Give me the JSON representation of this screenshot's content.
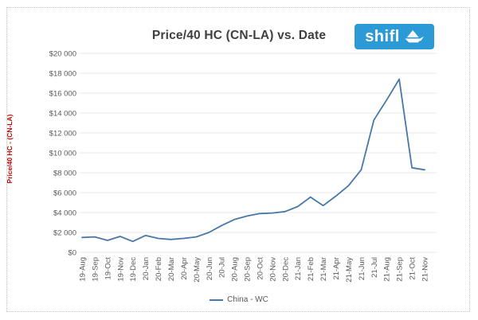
{
  "header": {
    "title": "Price/40 HC (CN-LA) vs. Date",
    "logo_text": "shifl"
  },
  "legend": {
    "label": "China - WC"
  },
  "colors": {
    "logo_blue": "#2b9ad6",
    "line_blue": "#4878a8",
    "axis_title_red": "#c00000",
    "title_gray": "#3f3f3f",
    "tick_gray": "#595959",
    "gridline": "#eaeaea"
  },
  "chart_data": {
    "type": "line",
    "title": "Price/40 HC (CN-LA) vs. Date",
    "xlabel": "",
    "ylabel": "Price/40 HC - (CN-LA)",
    "grid": true,
    "legend_position": "bottom",
    "ylim": [
      0,
      20000
    ],
    "y_tick_step": 2000,
    "y_tick_labels": [
      "$0",
      "$2 000",
      "$4 000",
      "$6 000",
      "$8 000",
      "$10 000",
      "$12 000",
      "$14 000",
      "$16 000",
      "$18 000",
      "$20 000"
    ],
    "categories": [
      "19-Aug",
      "19-Sep",
      "19-Oct",
      "19-Nov",
      "19-Dec",
      "20-Jan",
      "20-Feb",
      "20-Mar",
      "20-Apr",
      "20-May",
      "20-Jun",
      "20-Jul",
      "20-Aug",
      "20-Sep",
      "20-Oct",
      "20-Nov",
      "20-Dec",
      "21-Jan",
      "21-Feb",
      "21-Mar",
      "21-Apr",
      "21-May",
      "21-Jun",
      "21-Jul",
      "21-Aug",
      "21-Sep",
      "21-Oct",
      "21-Nov"
    ],
    "series": [
      {
        "name": "China - WC",
        "color": "#4878a8",
        "values": [
          1500,
          1550,
          1200,
          1600,
          1100,
          1700,
          1400,
          1300,
          1400,
          1550,
          2000,
          2700,
          3300,
          3650,
          3900,
          3950,
          4100,
          4600,
          5550,
          4700,
          5650,
          6700,
          8300,
          13300,
          15300,
          17400,
          8500,
          8300
        ]
      }
    ]
  }
}
